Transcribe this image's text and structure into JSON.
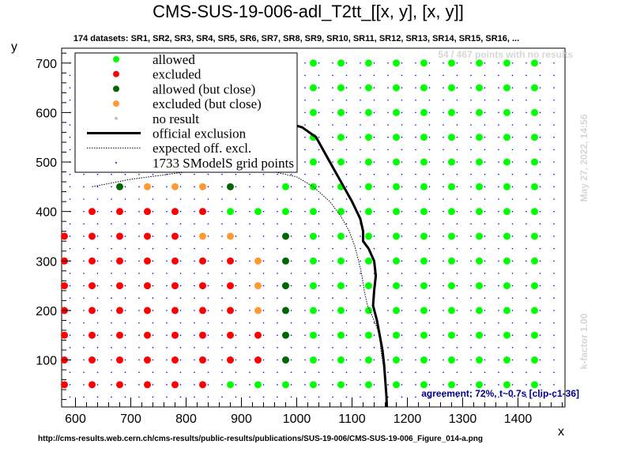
{
  "chart_data": {
    "type": "scatter",
    "title": "CMS-SUS-19-006-adl_T2tt_[[x, y], [x, y]]",
    "subtitle": "174 datasets: SR1, SR2, SR3, SR4, SR5, SR6, SR7, SR8, SR9, SR10, SR11, SR12, SR13, SR14, SR15, SR16, ...",
    "xlabel": "x",
    "ylabel": "y",
    "xlim": [
      575,
      1485
    ],
    "ylim": [
      5,
      730
    ],
    "x_ticks": [
      600,
      700,
      800,
      900,
      1000,
      1100,
      1200,
      1300,
      1400
    ],
    "y_ticks": [
      100,
      200,
      300,
      400,
      500,
      600,
      700
    ],
    "grid": false,
    "legend_position": "top-left",
    "legend": [
      {
        "label": "allowed",
        "marker": "dot",
        "color": "#00ff00"
      },
      {
        "label": "excluded",
        "marker": "dot",
        "color": "#ff0000"
      },
      {
        "label": "allowed (but close)",
        "marker": "dot",
        "color": "#006600"
      },
      {
        "label": "excluded (but close)",
        "marker": "dot",
        "color": "#ff9933"
      },
      {
        "label": "no result",
        "marker": "small-dot",
        "color": "#c0c0c0"
      },
      {
        "label": "official exclusion",
        "marker": "thick-line",
        "color": "#000000"
      },
      {
        "label": "expected off. excl.",
        "marker": "dotted-line",
        "color": "#000000"
      },
      {
        "label": "1733 SModelS grid points",
        "marker": "tiny-dot",
        "color": "#0000ff"
      }
    ],
    "colors": {
      "allowed": "#00ff00",
      "excluded": "#ff0000",
      "allowed_close": "#006600",
      "excluded_close": "#ff9933",
      "no_result": "#c0c0c0",
      "grid_points": "#0000ff",
      "agreement_text": "#00008b"
    },
    "series": [
      {
        "name": "excluded",
        "points": [
          [
            580,
            50
          ],
          [
            580,
            100
          ],
          [
            580,
            150
          ],
          [
            580,
            200
          ],
          [
            580,
            250
          ],
          [
            580,
            300
          ],
          [
            580,
            350
          ],
          [
            630,
            50
          ],
          [
            630,
            100
          ],
          [
            630,
            150
          ],
          [
            630,
            200
          ],
          [
            630,
            250
          ],
          [
            630,
            300
          ],
          [
            630,
            350
          ],
          [
            630,
            400
          ],
          [
            680,
            50
          ],
          [
            680,
            100
          ],
          [
            680,
            150
          ],
          [
            680,
            200
          ],
          [
            680,
            250
          ],
          [
            680,
            300
          ],
          [
            680,
            350
          ],
          [
            680,
            400
          ],
          [
            730,
            50
          ],
          [
            730,
            100
          ],
          [
            730,
            150
          ],
          [
            730,
            200
          ],
          [
            730,
            250
          ],
          [
            730,
            300
          ],
          [
            730,
            350
          ],
          [
            730,
            400
          ],
          [
            780,
            50
          ],
          [
            780,
            100
          ],
          [
            780,
            150
          ],
          [
            780,
            200
          ],
          [
            780,
            250
          ],
          [
            780,
            300
          ],
          [
            780,
            350
          ],
          [
            780,
            400
          ],
          [
            830,
            50
          ],
          [
            830,
            100
          ],
          [
            830,
            150
          ],
          [
            830,
            200
          ],
          [
            830,
            250
          ],
          [
            830,
            300
          ],
          [
            830,
            400
          ],
          [
            880,
            100
          ],
          [
            880,
            150
          ],
          [
            880,
            200
          ],
          [
            880,
            250
          ],
          [
            880,
            300
          ],
          [
            930,
            100
          ],
          [
            930,
            150
          ]
        ]
      },
      {
        "name": "allowed",
        "points": [
          [
            880,
            50
          ],
          [
            880,
            400
          ],
          [
            930,
            50
          ],
          [
            930,
            400
          ],
          [
            980,
            50
          ],
          [
            980,
            400
          ],
          [
            980,
            450
          ],
          [
            1030,
            50
          ],
          [
            1030,
            100
          ],
          [
            1030,
            150
          ],
          [
            1030,
            200
          ],
          [
            1030,
            250
          ],
          [
            1030,
            300
          ],
          [
            1030,
            350
          ],
          [
            1030,
            400
          ],
          [
            1030,
            450
          ],
          [
            1030,
            500
          ],
          [
            1030,
            550
          ],
          [
            1030,
            600
          ],
          [
            1030,
            650
          ],
          [
            1030,
            700
          ],
          [
            1080,
            50
          ],
          [
            1080,
            100
          ],
          [
            1080,
            150
          ],
          [
            1080,
            200
          ],
          [
            1080,
            250
          ],
          [
            1080,
            300
          ],
          [
            1080,
            350
          ],
          [
            1080,
            400
          ],
          [
            1080,
            450
          ],
          [
            1080,
            500
          ],
          [
            1080,
            550
          ],
          [
            1080,
            600
          ],
          [
            1080,
            650
          ],
          [
            1080,
            700
          ],
          [
            1130,
            50
          ],
          [
            1130,
            100
          ],
          [
            1130,
            150
          ],
          [
            1130,
            200
          ],
          [
            1130,
            250
          ],
          [
            1130,
            300
          ],
          [
            1130,
            350
          ],
          [
            1130,
            400
          ],
          [
            1130,
            450
          ],
          [
            1130,
            500
          ],
          [
            1130,
            550
          ],
          [
            1130,
            600
          ],
          [
            1130,
            650
          ],
          [
            1130,
            700
          ],
          [
            1180,
            50
          ],
          [
            1180,
            100
          ],
          [
            1180,
            150
          ],
          [
            1180,
            200
          ],
          [
            1180,
            250
          ],
          [
            1180,
            300
          ],
          [
            1180,
            350
          ],
          [
            1180,
            400
          ],
          [
            1180,
            450
          ],
          [
            1180,
            500
          ],
          [
            1180,
            550
          ],
          [
            1180,
            600
          ],
          [
            1180,
            650
          ],
          [
            1180,
            700
          ],
          [
            1230,
            50
          ],
          [
            1230,
            100
          ],
          [
            1230,
            150
          ],
          [
            1230,
            200
          ],
          [
            1230,
            250
          ],
          [
            1230,
            300
          ],
          [
            1230,
            350
          ],
          [
            1230,
            400
          ],
          [
            1230,
            450
          ],
          [
            1230,
            500
          ],
          [
            1230,
            550
          ],
          [
            1230,
            600
          ],
          [
            1230,
            650
          ],
          [
            1230,
            700
          ],
          [
            1280,
            50
          ],
          [
            1280,
            100
          ],
          [
            1280,
            150
          ],
          [
            1280,
            200
          ],
          [
            1280,
            250
          ],
          [
            1280,
            300
          ],
          [
            1280,
            350
          ],
          [
            1280,
            400
          ],
          [
            1280,
            450
          ],
          [
            1280,
            500
          ],
          [
            1280,
            550
          ],
          [
            1280,
            600
          ],
          [
            1280,
            650
          ],
          [
            1280,
            700
          ],
          [
            1330,
            50
          ],
          [
            1330,
            100
          ],
          [
            1330,
            150
          ],
          [
            1330,
            200
          ],
          [
            1330,
            250
          ],
          [
            1330,
            300
          ],
          [
            1330,
            350
          ],
          [
            1330,
            400
          ],
          [
            1330,
            450
          ],
          [
            1330,
            500
          ],
          [
            1330,
            550
          ],
          [
            1330,
            600
          ],
          [
            1330,
            650
          ],
          [
            1330,
            700
          ],
          [
            1380,
            50
          ],
          [
            1380,
            100
          ],
          [
            1380,
            150
          ],
          [
            1380,
            200
          ],
          [
            1380,
            250
          ],
          [
            1380,
            300
          ],
          [
            1380,
            350
          ],
          [
            1380,
            400
          ],
          [
            1380,
            450
          ],
          [
            1380,
            500
          ],
          [
            1380,
            550
          ],
          [
            1380,
            600
          ],
          [
            1380,
            650
          ],
          [
            1380,
            700
          ],
          [
            1430,
            50
          ],
          [
            1430,
            100
          ],
          [
            1430,
            150
          ],
          [
            1430,
            200
          ],
          [
            1430,
            250
          ],
          [
            1430,
            300
          ],
          [
            1430,
            350
          ],
          [
            1430,
            400
          ],
          [
            1430,
            450
          ],
          [
            1430,
            500
          ],
          [
            1430,
            550
          ],
          [
            1430,
            600
          ],
          [
            1430,
            650
          ],
          [
            1430,
            700
          ],
          [
            880,
            550
          ],
          [
            880,
            600
          ],
          [
            880,
            650
          ],
          [
            880,
            700
          ],
          [
            930,
            600
          ],
          [
            930,
            650
          ],
          [
            930,
            700
          ],
          [
            980,
            600
          ],
          [
            980,
            650
          ],
          [
            980,
            700
          ],
          [
            830,
            700
          ],
          [
            830,
            650
          ],
          [
            830,
            600
          ],
          [
            830,
            550
          ],
          [
            780,
            700
          ],
          [
            780,
            650
          ],
          [
            730,
            700
          ]
        ]
      },
      {
        "name": "allowed (but close)",
        "points": [
          [
            680,
            450
          ],
          [
            880,
            450
          ],
          [
            980,
            350
          ],
          [
            980,
            300
          ],
          [
            980,
            250
          ],
          [
            980,
            200
          ],
          [
            980,
            150
          ],
          [
            980,
            100
          ]
        ]
      },
      {
        "name": "excluded (but close)",
        "points": [
          [
            730,
            450
          ],
          [
            780,
            450
          ],
          [
            830,
            450
          ],
          [
            830,
            350
          ],
          [
            880,
            350
          ],
          [
            930,
            300
          ],
          [
            930,
            250
          ],
          [
            930,
            200
          ]
        ]
      },
      {
        "name": "official exclusion",
        "points": [
          [
            830,
            560
          ],
          [
            900,
            570
          ],
          [
            980,
            580
          ],
          [
            1010,
            570
          ],
          [
            1035,
            550
          ],
          [
            1050,
            520
          ],
          [
            1070,
            480
          ],
          [
            1085,
            450
          ],
          [
            1100,
            420
          ],
          [
            1115,
            385
          ],
          [
            1120,
            360
          ],
          [
            1120,
            340
          ],
          [
            1130,
            325
          ],
          [
            1140,
            300
          ],
          [
            1143,
            270
          ],
          [
            1140,
            240
          ],
          [
            1138,
            210
          ],
          [
            1145,
            180
          ],
          [
            1150,
            150
          ],
          [
            1155,
            120
          ],
          [
            1158,
            90
          ],
          [
            1160,
            60
          ],
          [
            1162,
            30
          ],
          [
            1163,
            5
          ]
        ]
      },
      {
        "name": "expected off. excl.",
        "points": [
          [
            630,
            450
          ],
          [
            700,
            465
          ],
          [
            800,
            480
          ],
          [
            900,
            485
          ],
          [
            960,
            480
          ],
          [
            1000,
            470
          ],
          [
            1030,
            450
          ],
          [
            1060,
            420
          ],
          [
            1080,
            390
          ],
          [
            1095,
            360
          ],
          [
            1105,
            330
          ],
          [
            1112,
            300
          ],
          [
            1118,
            270
          ],
          [
            1122,
            240
          ],
          [
            1128,
            210
          ],
          [
            1140,
            180
          ],
          [
            1150,
            150
          ],
          [
            1152,
            120
          ],
          [
            1158,
            80
          ],
          [
            1162,
            40
          ],
          [
            1163,
            5
          ]
        ]
      }
    ],
    "annotations": {
      "no_results": "54 / 467 points with no results",
      "date": "May 27, 2022, 14:56",
      "kfactor": "k-factor 1.00",
      "agreement": "agreement: 72%, t~0.7s [clip-c1-36]",
      "source": "http://cms-results.web.cern.ch/cms-results/public-results/publications/SUS-19-006/CMS-SUS-19-006_Figure_014-a.png"
    }
  }
}
